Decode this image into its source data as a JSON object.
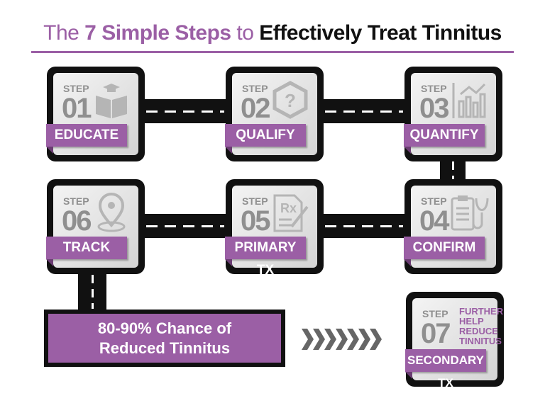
{
  "title": {
    "part1": "The ",
    "part2": "7 Simple Steps",
    "part3": " to ",
    "part4": "Effectively Treat Tinnitus"
  },
  "colors": {
    "accent": "#9b5fa5",
    "road": "#111111",
    "number": "#8f8f8f"
  },
  "steps": [
    {
      "step": "STEP",
      "num": "01",
      "label": "EDUCATE",
      "icon": "book-graduation-icon"
    },
    {
      "step": "STEP",
      "num": "02",
      "label": "QUALIFY",
      "icon": "question-hexagon-icon"
    },
    {
      "step": "STEP",
      "num": "03",
      "label": "QUANTIFY",
      "icon": "chart-icon"
    },
    {
      "step": "STEP",
      "num": "04",
      "label": "CONFIRM",
      "icon": "clipboard-stethoscope-icon"
    },
    {
      "step": "STEP",
      "num": "05",
      "label": "PRIMARY TX",
      "icon": "prescription-icon"
    },
    {
      "step": "STEP",
      "num": "06",
      "label": "TRACK",
      "icon": "location-pin-icon"
    },
    {
      "step": "STEP",
      "num": "07",
      "label": "SECONDARY TX",
      "note": [
        "FURTHER",
        "HELP",
        "REDUCE",
        "TINNITUS"
      ]
    }
  ],
  "result": {
    "line1": "80-90% Chance of",
    "line2": "Reduced Tinnitus"
  }
}
